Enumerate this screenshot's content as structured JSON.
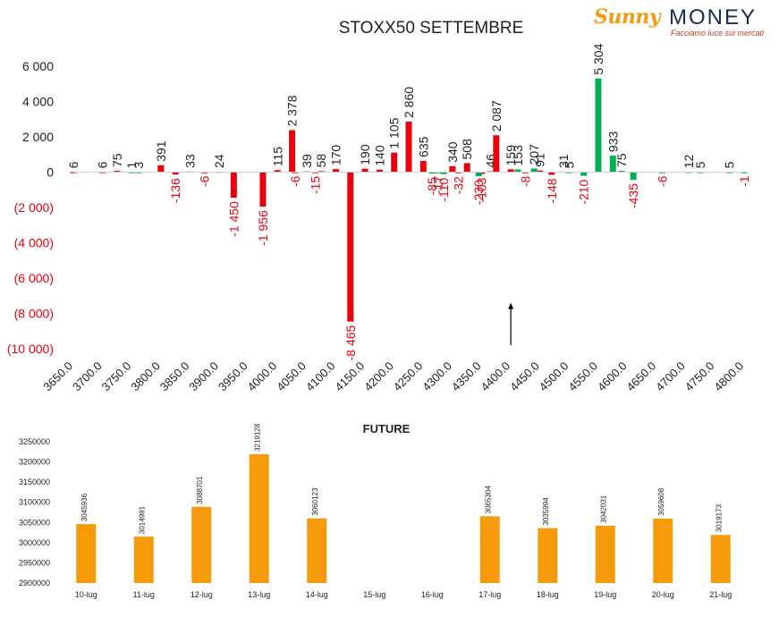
{
  "logo": {
    "brand_sun": "Sunny",
    "brand_money": "MONEY",
    "tagline": "Facciamo luce sui mercati",
    "colors": {
      "sun": "#f39c12",
      "money": "#1a2a57",
      "tagline": "#c0392b"
    }
  },
  "colors": {
    "positive": "#e8000e",
    "negative": "#00b050",
    "future_bar": "#f59a0b",
    "neg_label": "#e8000e",
    "pos_label": "#222222"
  },
  "chart_data": [
    {
      "type": "bar",
      "title": "STOXX50 SETTEMBRE",
      "xlabel": "",
      "ylabel": "",
      "ylim": [
        -10000,
        6000
      ],
      "yticks": [
        6000,
        4000,
        2000,
        0,
        -2000,
        -4000,
        -6000,
        -8000,
        -10000
      ],
      "ytick_labels": [
        "6 000",
        "4 000",
        "2 000",
        "0",
        "(2 000)",
        "(4 000)",
        "(6 000)",
        "(8 000)",
        "(10 000)"
      ],
      "x_tick_labels": [
        "3650.0",
        "3700.0",
        "3750.0",
        "3800.0",
        "3850.0",
        "3900.0",
        "3950.0",
        "4000.0",
        "4050.0",
        "4100.0",
        "4150.0",
        "4200.0",
        "4250.0",
        "4300.0",
        "4350.0",
        "4400.0",
        "4450.0",
        "4500.0",
        "4550.0",
        "4600.0",
        "4650.0",
        "4700.0",
        "4750.0",
        "4800.0"
      ],
      "x_tick_values": [
        3650,
        3700,
        3750,
        3800,
        3850,
        3900,
        3950,
        4000,
        4050,
        4100,
        4150,
        4200,
        4250,
        4300,
        4350,
        4400,
        4450,
        4500,
        4550,
        4600,
        4650,
        4700,
        4750,
        4800
      ],
      "series": [
        {
          "color": "#e8000e",
          "points": [
            {
              "x": 3650,
              "v": 6,
              "l": "6"
            },
            {
              "x": 3700,
              "v": 6,
              "l": "6"
            },
            {
              "x": 3725,
              "v": 75,
              "l": "75"
            },
            {
              "x": 3800,
              "v": 391,
              "l": "391"
            },
            {
              "x": 3825,
              "v": -136,
              "l": "-136"
            },
            {
              "x": 3850,
              "v": 33,
              "l": "33"
            },
            {
              "x": 3875,
              "v": -6,
              "l": "-6"
            },
            {
              "x": 3900,
              "v": 24,
              "l": "24"
            },
            {
              "x": 3925,
              "v": -1450,
              "l": "-1 450"
            },
            {
              "x": 3975,
              "v": -1956,
              "l": "-1 956"
            },
            {
              "x": 4000,
              "v": 115,
              "l": "115"
            },
            {
              "x": 4025,
              "v": 2378,
              "l": "2 378"
            },
            {
              "x": 4030,
              "v": -6,
              "l": "-6"
            },
            {
              "x": 4050,
              "v": 39,
              "l": "39"
            },
            {
              "x": 4065,
              "v": -15,
              "l": "-15"
            },
            {
              "x": 4075,
              "v": 58,
              "l": "58"
            },
            {
              "x": 4100,
              "v": 170,
              "l": "170"
            },
            {
              "x": 4125,
              "v": -8465,
              "l": "-8 465"
            },
            {
              "x": 4150,
              "v": 190,
              "l": "190"
            },
            {
              "x": 4175,
              "v": 140,
              "l": "140"
            },
            {
              "x": 4200,
              "v": 1105,
              "l": "1 105"
            },
            {
              "x": 4225,
              "v": 2860,
              "l": "2 860"
            },
            {
              "x": 4250,
              "v": 635,
              "l": "635"
            },
            {
              "x": 4300,
              "v": 340,
              "l": "340"
            },
            {
              "x": 4310,
              "v": -32,
              "l": "-32"
            },
            {
              "x": 4325,
              "v": 508,
              "l": "508"
            },
            {
              "x": 4350,
              "v": -103,
              "l": "-103"
            },
            {
              "x": 4365,
              "v": 46,
              "l": "46"
            },
            {
              "x": 4375,
              "v": 2087,
              "l": "2 087"
            },
            {
              "x": 4400,
              "v": 159,
              "l": "159"
            },
            {
              "x": 4425,
              "v": -8,
              "l": "-8"
            },
            {
              "x": 4450,
              "v": 91,
              "l": "91"
            },
            {
              "x": 4470,
              "v": -148,
              "l": "-148"
            }
          ]
        },
        {
          "color": "#00b050",
          "points": [
            {
              "x": 3750,
              "v": 1,
              "l": "1"
            },
            {
              "x": 3762,
              "v": 3,
              "l": "3"
            },
            {
              "x": 4265,
              "v": -85,
              "l": "-85"
            },
            {
              "x": 4275,
              "v": -17,
              "l": "-17"
            },
            {
              "x": 4285,
              "v": -110,
              "l": "-110"
            },
            {
              "x": 4345,
              "v": -230,
              "l": "-230"
            },
            {
              "x": 4412,
              "v": 153,
              "l": "153"
            },
            {
              "x": 4440,
              "v": 207,
              "l": "207"
            },
            {
              "x": 4490,
              "v": 31,
              "l": "31"
            },
            {
              "x": 4500,
              "v": 5,
              "l": "5"
            },
            {
              "x": 4525,
              "v": -210,
              "l": "-210"
            },
            {
              "x": 4550,
              "v": 5304,
              "l": "5 304"
            },
            {
              "x": 4575,
              "v": 933,
              "l": "933"
            },
            {
              "x": 4590,
              "v": 75,
              "l": "75"
            },
            {
              "x": 4610,
              "v": -435,
              "l": "-435"
            },
            {
              "x": 4660,
              "v": -6,
              "l": "-6"
            },
            {
              "x": 4705,
              "v": 12,
              "l": "12"
            },
            {
              "x": 4725,
              "v": 5,
              "l": "5"
            },
            {
              "x": 4775,
              "v": 5,
              "l": "5"
            },
            {
              "x": 4800,
              "v": -1,
              "l": "-1"
            }
          ]
        }
      ],
      "annotation": {
        "type": "arrow",
        "x": 4400,
        "y_from": -9800,
        "y_to": -7400
      }
    },
    {
      "type": "bar",
      "title": "FUTURE",
      "xlabel": "",
      "ylabel": "",
      "ylim": [
        2900000,
        3250000
      ],
      "yticks": [
        2900000,
        2950000,
        3000000,
        3050000,
        3100000,
        3150000,
        3200000,
        3250000
      ],
      "categories": [
        "10-lug",
        "11-lug",
        "12-lug",
        "13-lug",
        "14-lug",
        "15-lug",
        "16-lug",
        "17-lug",
        "18-lug",
        "19-lug",
        "20-lug",
        "21-lug"
      ],
      "values": [
        3045936,
        3014991,
        3088701,
        3219128,
        3060123,
        null,
        null,
        3065304,
        3035994,
        3042031,
        3059608,
        3019173
      ],
      "color": "#f59a0b"
    }
  ]
}
